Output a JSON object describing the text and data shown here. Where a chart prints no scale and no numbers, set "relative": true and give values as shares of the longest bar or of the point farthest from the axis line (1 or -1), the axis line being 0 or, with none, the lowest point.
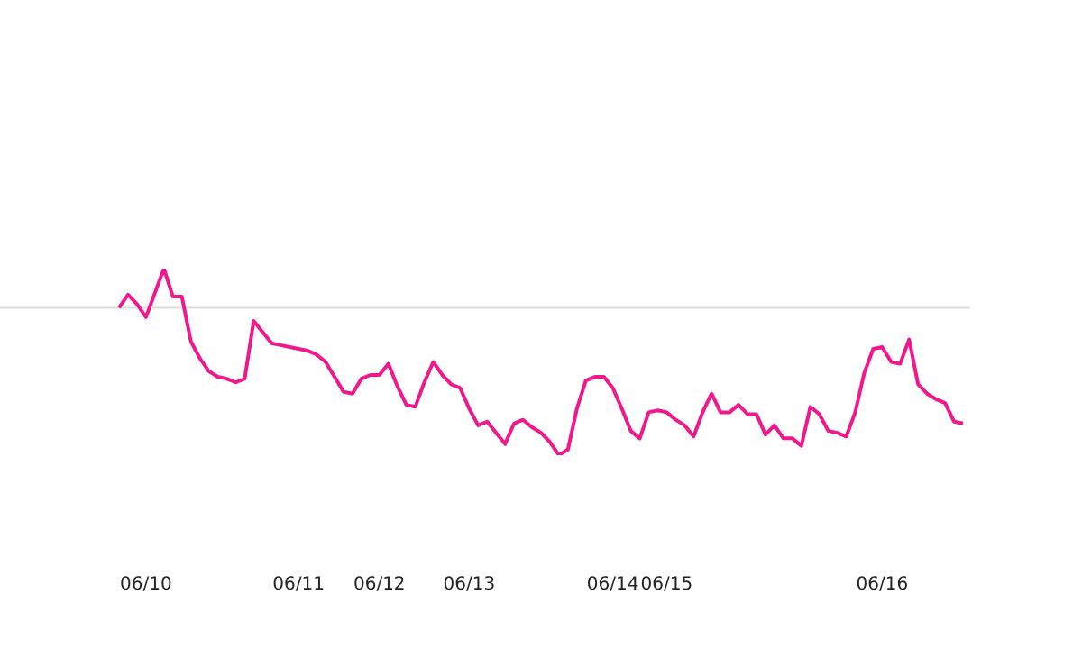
{
  "chart_data": {
    "type": "line",
    "relative": true,
    "grid": false,
    "legend": false,
    "marker": "none",
    "line_style": "solid",
    "categories": [
      null,
      null,
      null,
      "06/10",
      null,
      null,
      null,
      null,
      null,
      null,
      null,
      null,
      null,
      null,
      null,
      null,
      null,
      null,
      null,
      null,
      "06/11",
      null,
      null,
      null,
      null,
      null,
      null,
      null,
      null,
      "06/12",
      null,
      null,
      null,
      null,
      null,
      null,
      null,
      null,
      null,
      "06/13",
      null,
      null,
      null,
      null,
      null,
      null,
      null,
      null,
      null,
      null,
      null,
      null,
      null,
      null,
      null,
      "06/14",
      null,
      null,
      null,
      null,
      null,
      "06/15",
      null,
      null,
      null,
      null,
      null,
      null,
      null,
      null,
      null,
      null,
      null,
      null,
      null,
      null,
      null,
      null,
      null,
      null,
      null,
      null,
      null,
      null,
      null,
      "06/16",
      null,
      null,
      null,
      null,
      null,
      null,
      null,
      null,
      null
    ],
    "series": [
      {
        "color": "#f0198c",
        "values": [
          0.79,
          0.86,
          0.81,
          0.74,
          0.87,
          1,
          0.85,
          0.85,
          0.61,
          0.52,
          0.45,
          0.42,
          0.41,
          0.39,
          0.41,
          0.72,
          0.66,
          0.6,
          0.59,
          0.58,
          0.57,
          0.56,
          0.54,
          0.5,
          0.42,
          0.34,
          0.33,
          0.41,
          0.43,
          0.43,
          0.49,
          0.37,
          0.27,
          0.26,
          0.39,
          0.5,
          0.43,
          0.38,
          0.36,
          0.25,
          0.16,
          0.18,
          0.12,
          0.06,
          0.17,
          0.19,
          0.15,
          0.12,
          0.07,
          0,
          0.03,
          0.25,
          0.4,
          0.42,
          0.42,
          0.36,
          0.25,
          0.13,
          0.09,
          0.23,
          0.24,
          0.23,
          0.19,
          0.16,
          0.1,
          0.23,
          0.33,
          0.23,
          0.23,
          0.27,
          0.22,
          0.22,
          0.11,
          0.16,
          0.09,
          0.09,
          0.05,
          0.26,
          0.22,
          0.13,
          0.12,
          0.1,
          0.23,
          0.44,
          0.57,
          0.58,
          0.5,
          0.49,
          0.62,
          0.38,
          0.33,
          0.3,
          0.28,
          0.18,
          0.17
        ]
      }
    ],
    "ref_lines": [
      {
        "axis": "y",
        "value": 0.79,
        "color": "#dddddd"
      }
    ]
  }
}
